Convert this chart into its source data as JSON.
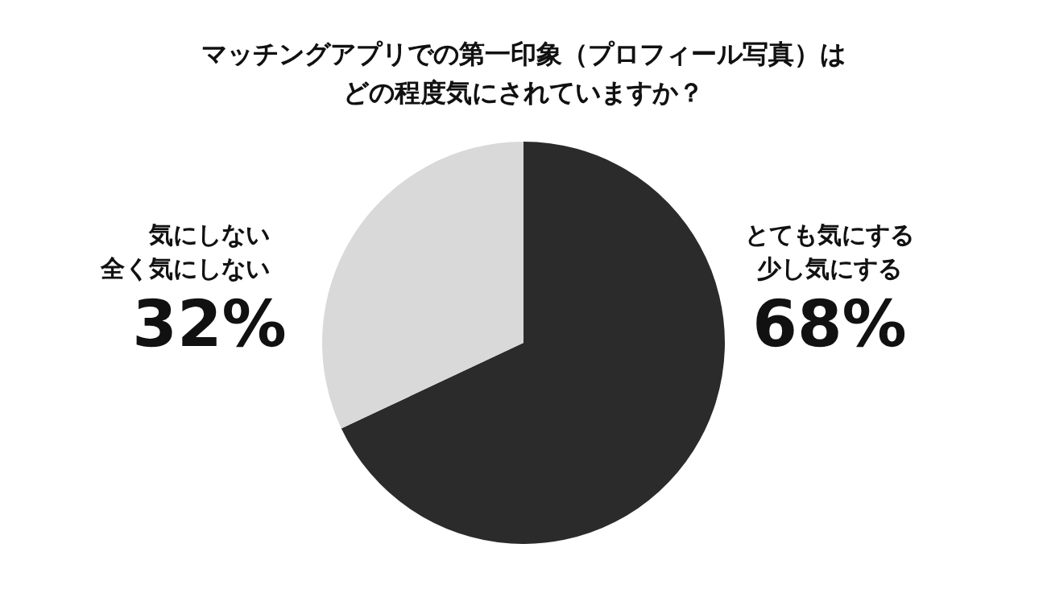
{
  "chart_data": {
    "type": "pie",
    "title": "マッチングアプリでの第一印象（プロフィール写真）はどの程度気にされていますか？",
    "categories": [
      "とても気にする少し気にする",
      "気にしない全く気にしない"
    ],
    "values": [
      68,
      32
    ],
    "colors": [
      "#2b2b2b",
      "#d9d9d9"
    ],
    "value_labels": [
      "68%",
      "32%"
    ],
    "legend": false
  }
}
